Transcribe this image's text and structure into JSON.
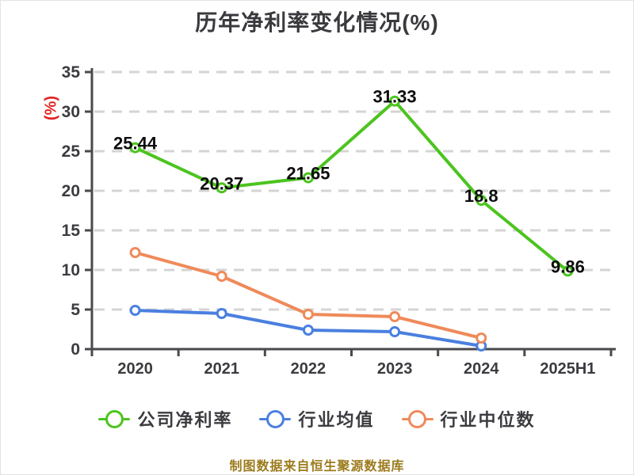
{
  "title": "历年净利率变化情况(%)",
  "footer": "制图数据来自恒生聚源数据库",
  "colors": {
    "title_text": "#3a3a3e",
    "axis": "#4a4a4e",
    "grid": "#d4d4d4",
    "tick_text": "#3b3b40",
    "data_label": "#0d0d0d",
    "y_axis_title": "#e02222",
    "footer_text": "#9c7b1d",
    "marker_fill": "#ffffff"
  },
  "chart_data": {
    "type": "line",
    "title": "历年净利率变化情况(%)",
    "categories": [
      "2020",
      "2021",
      "2022",
      "2023",
      "2024",
      "2025H1"
    ],
    "series": [
      {
        "name": "公司净利率",
        "color": "#4cc41f",
        "values": [
          25.44,
          20.37,
          21.65,
          31.33,
          18.8,
          9.86
        ],
        "show_labels": true
      },
      {
        "name": "行业均值",
        "color": "#4a7fe0",
        "values": [
          4.9,
          4.5,
          2.4,
          2.2,
          0.4
        ],
        "show_labels": false
      },
      {
        "name": "行业中位数",
        "color": "#ef8a5a",
        "values": [
          12.2,
          9.2,
          4.4,
          4.1,
          1.4
        ],
        "show_labels": false
      }
    ],
    "xlabel": "",
    "ylabel": "(%)",
    "ylim": [
      0,
      35
    ],
    "yticks": [
      0,
      5,
      10,
      15,
      20,
      25,
      30,
      35
    ],
    "grid": true,
    "grid_style": "dashed",
    "legend_position": "bottom",
    "marker": "circle-white-fill"
  }
}
